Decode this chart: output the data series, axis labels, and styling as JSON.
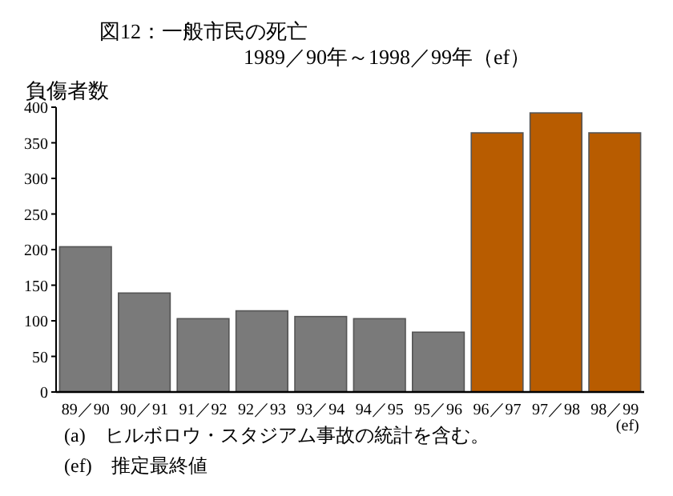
{
  "chart_data": {
    "type": "bar",
    "title": "図12：一般市民の死亡",
    "subtitle": "1989／90年～1998／99年（ef）",
    "ylabel": "負傷者数",
    "categories": [
      "89／90",
      "90／91",
      "91／92",
      "92／93",
      "93／94",
      "94／95",
      "95／96",
      "96／97",
      "97／98",
      "98／99\n(ef)"
    ],
    "values": [
      204,
      139,
      103,
      114,
      106,
      103,
      84,
      364,
      392,
      364
    ],
    "colors": [
      "#7a7a7a",
      "#7a7a7a",
      "#7a7a7a",
      "#7a7a7a",
      "#7a7a7a",
      "#7a7a7a",
      "#7a7a7a",
      "#b85c00",
      "#b85c00",
      "#b85c00"
    ],
    "ylim": [
      0,
      400
    ],
    "yticks": [
      0,
      50,
      100,
      150,
      200,
      250,
      300,
      350,
      400
    ],
    "grid": false,
    "annotations": [
      "(a)　ヒルボロウ・スタジアム事故の統計を含む。",
      "(ef)　推定最終値"
    ]
  }
}
